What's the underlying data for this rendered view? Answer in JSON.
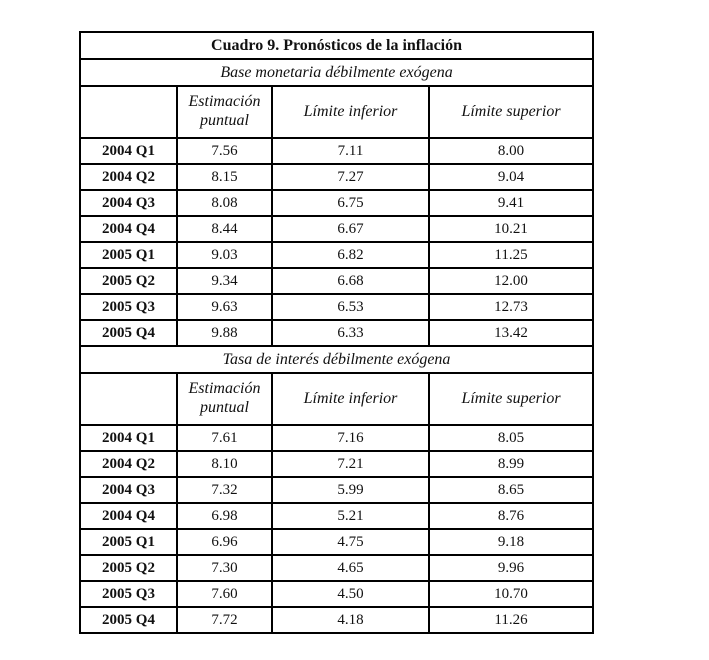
{
  "page": {
    "background": "#ffffff"
  },
  "table": {
    "title": "Cuadro 9. Pronósticos de la inflación",
    "columns": {
      "corner": "",
      "estimacion": "Estimación puntual",
      "inferior": "Límite inferior",
      "superior": "Límite superior"
    },
    "sections": [
      {
        "subtitle": "Base monetaria débilmente exógena",
        "rows": [
          {
            "label": "2004 Q1",
            "values": [
              "7.56",
              "7.11",
              "8.00"
            ]
          },
          {
            "label": "2004 Q2",
            "values": [
              "8.15",
              "7.27",
              "9.04"
            ]
          },
          {
            "label": "2004 Q3",
            "values": [
              "8.08",
              "6.75",
              "9.41"
            ]
          },
          {
            "label": "2004 Q4",
            "values": [
              "8.44",
              "6.67",
              "10.21"
            ]
          },
          {
            "label": "2005 Q1",
            "values": [
              "9.03",
              "6.82",
              "11.25"
            ]
          },
          {
            "label": "2005 Q2",
            "values": [
              "9.34",
              "6.68",
              "12.00"
            ]
          },
          {
            "label": "2005 Q3",
            "values": [
              "9.63",
              "6.53",
              "12.73"
            ]
          },
          {
            "label": "2005 Q4",
            "values": [
              "9.88",
              "6.33",
              "13.42"
            ]
          }
        ]
      },
      {
        "subtitle": "Tasa de interés débilmente exógena",
        "rows": [
          {
            "label": "2004 Q1",
            "values": [
              "7.61",
              "7.16",
              "8.05"
            ]
          },
          {
            "label": "2004 Q2",
            "values": [
              "8.10",
              "7.21",
              "8.99"
            ]
          },
          {
            "label": "2004 Q3",
            "values": [
              "7.32",
              "5.99",
              "8.65"
            ]
          },
          {
            "label": "2004 Q4",
            "values": [
              "6.98",
              "5.21",
              "8.76"
            ]
          },
          {
            "label": "2005 Q1",
            "values": [
              "6.96",
              "4.75",
              "9.18"
            ]
          },
          {
            "label": "2005 Q2",
            "values": [
              "7.30",
              "4.65",
              "9.96"
            ]
          },
          {
            "label": "2005 Q3",
            "values": [
              "7.60",
              "4.50",
              "10.70"
            ]
          },
          {
            "label": "2005 Q4",
            "values": [
              "7.72",
              "4.18",
              "11.26"
            ]
          }
        ]
      }
    ],
    "colors": {
      "border": "#000000",
      "text": "#111111",
      "background": "#ffffff"
    }
  },
  "chart_data": {
    "type": "table",
    "title": "Cuadro 9. Pronósticos de la inflación",
    "categories": [
      "2004 Q1",
      "2004 Q2",
      "2004 Q3",
      "2004 Q4",
      "2005 Q1",
      "2005 Q2",
      "2005 Q3",
      "2005 Q4"
    ],
    "series": [
      {
        "name": "Base monetaria débilmente exógena - Estimación puntual",
        "values": [
          7.56,
          8.15,
          8.08,
          8.44,
          9.03,
          9.34,
          9.63,
          9.88
        ]
      },
      {
        "name": "Base monetaria débilmente exógena - Límite inferior",
        "values": [
          7.11,
          7.27,
          6.75,
          6.67,
          6.82,
          6.68,
          6.53,
          6.33
        ]
      },
      {
        "name": "Base monetaria débilmente exógena - Límite superior",
        "values": [
          8.0,
          9.04,
          9.41,
          10.21,
          11.25,
          12.0,
          12.73,
          13.42
        ]
      },
      {
        "name": "Tasa de interés débilmente exógena - Estimación puntual",
        "values": [
          7.61,
          8.1,
          7.32,
          6.98,
          6.96,
          7.3,
          7.6,
          7.72
        ]
      },
      {
        "name": "Tasa de interés débilmente exógena - Límite inferior",
        "values": [
          7.16,
          7.21,
          5.99,
          5.21,
          4.75,
          4.65,
          4.5,
          4.18
        ]
      },
      {
        "name": "Tasa de interés débilmente exógena - Límite superior",
        "values": [
          8.05,
          8.99,
          8.65,
          8.76,
          9.18,
          9.96,
          10.7,
          11.26
        ]
      }
    ]
  }
}
